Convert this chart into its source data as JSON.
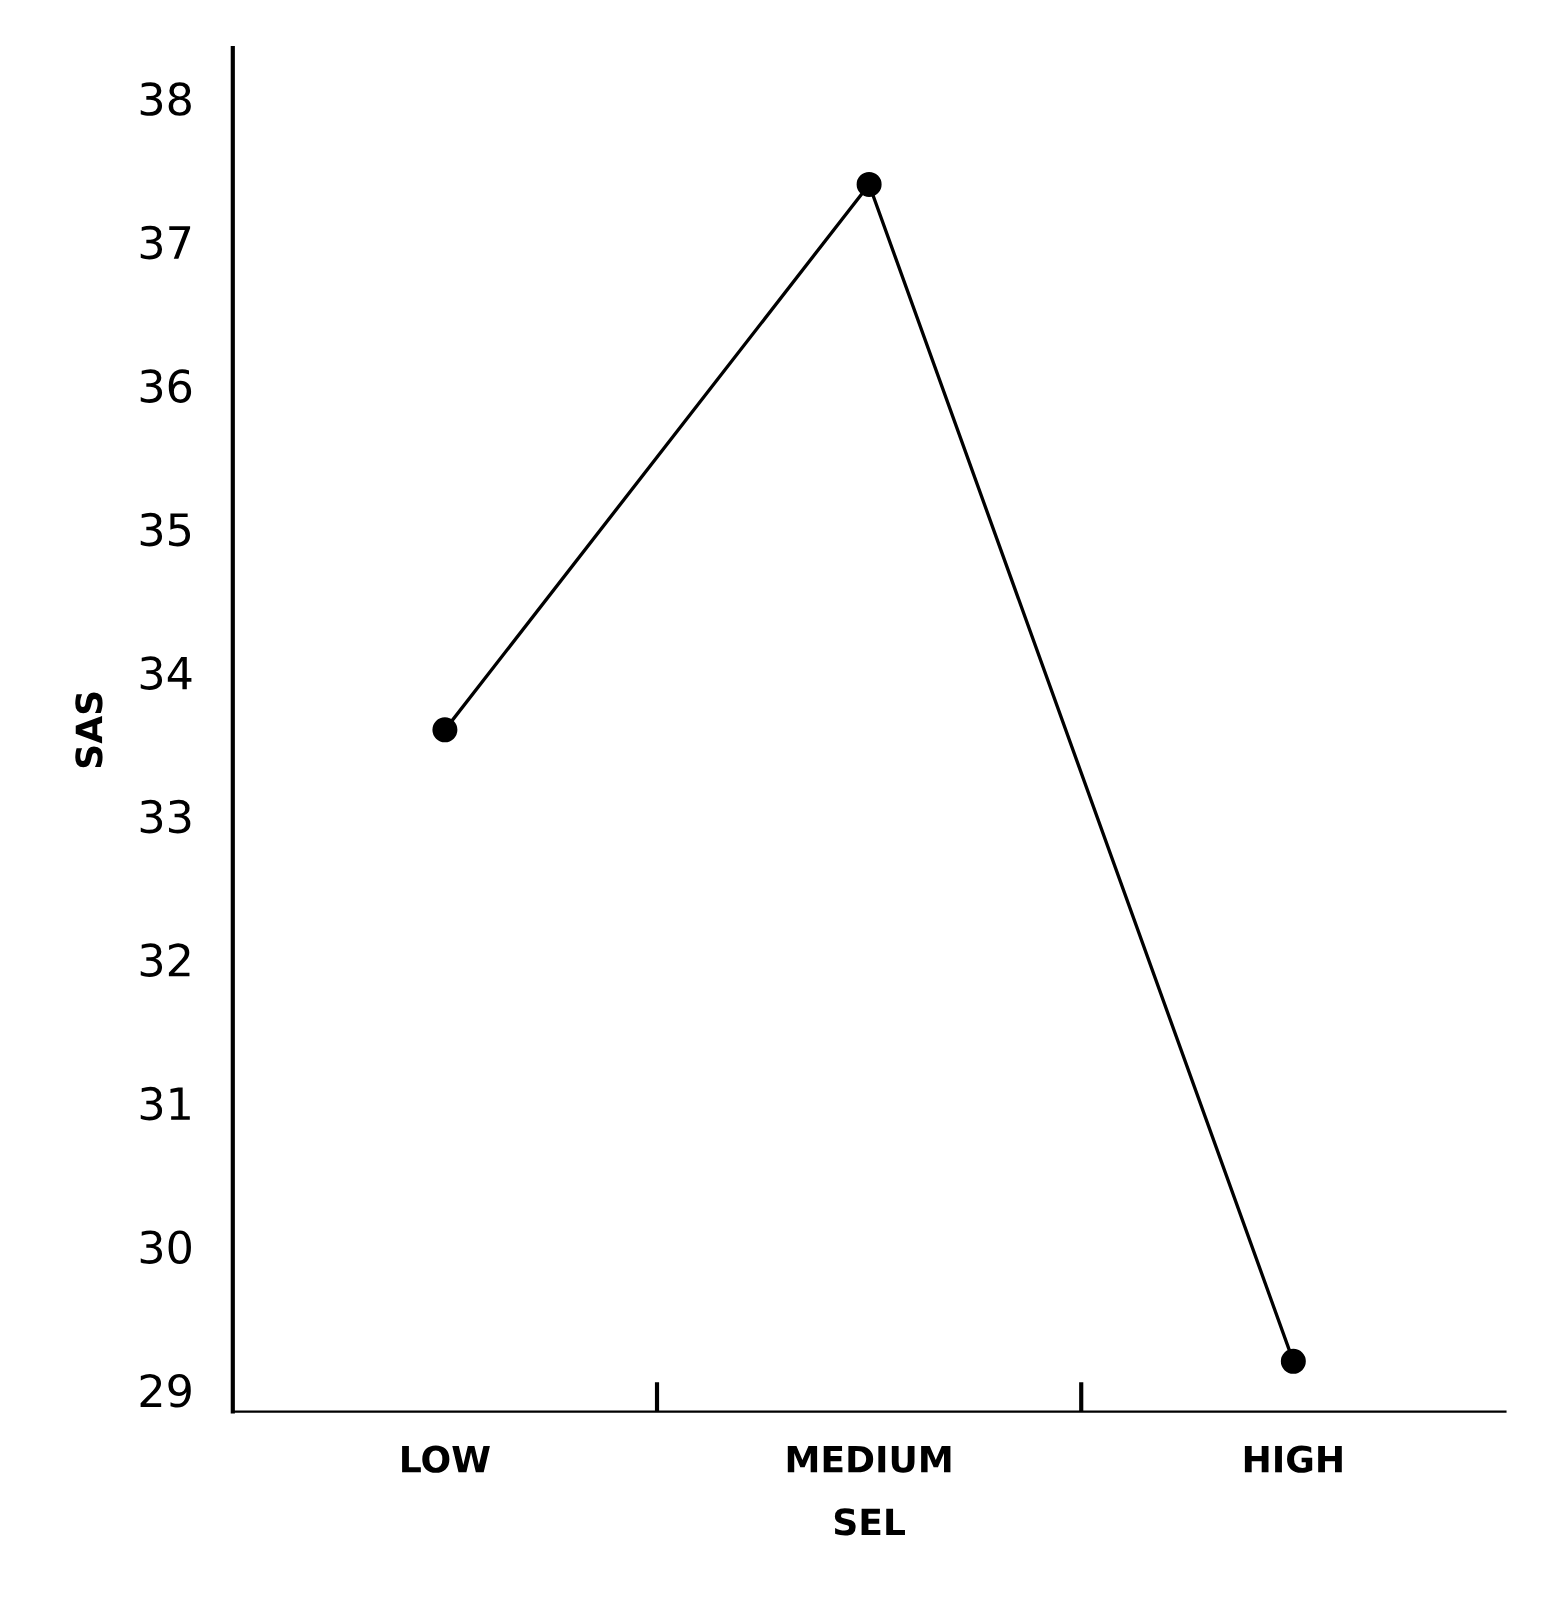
{
  "chart_data": {
    "type": "line",
    "xlabel": "SEL",
    "ylabel": "SAS",
    "categories": [
      "LOW",
      "MEDIUM",
      "HIGH"
    ],
    "series": [
      {
        "color": "#000000",
        "values": [
          33.6,
          37.4,
          29.2
        ]
      }
    ],
    "ylim": [
      28.85,
      38.35
    ],
    "yticks": [
      29,
      30,
      31,
      32,
      33,
      34,
      35,
      36,
      37,
      38
    ],
    "marker": "circle",
    "line_style": "solid",
    "grid": false,
    "legend": false
  }
}
